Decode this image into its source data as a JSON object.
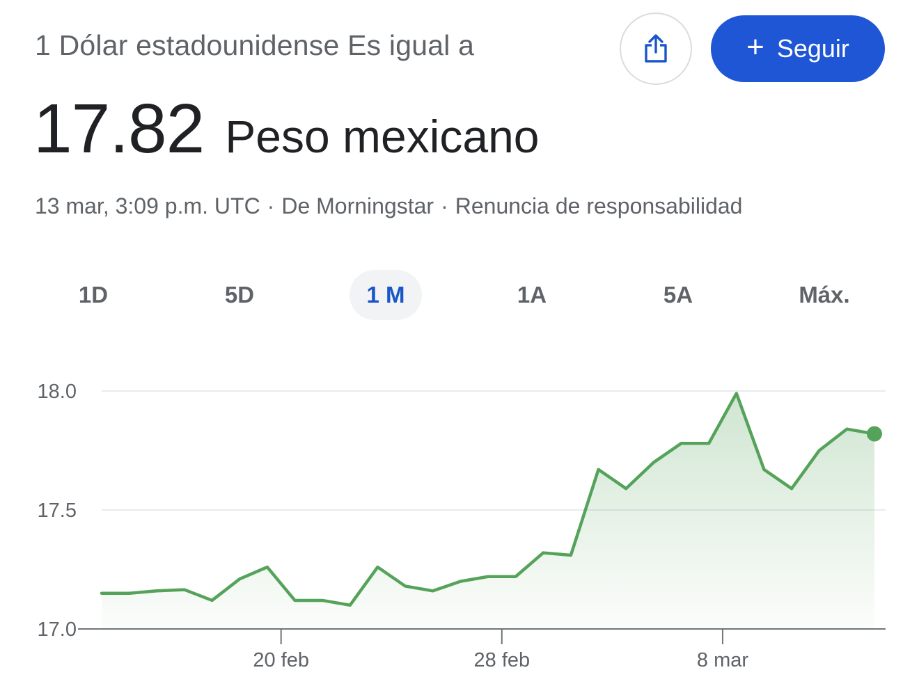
{
  "header": {
    "title": "1 Dólar estadounidense Es igual a",
    "share_icon": "share-icon",
    "follow_label": "Seguir",
    "follow_icon": "plus-icon"
  },
  "rate": {
    "value": "17.82",
    "currency": "Peso mexicano"
  },
  "meta": {
    "timestamp": "13 mar, 3:09 p.m. UTC",
    "separator": "·",
    "source": "De Morningstar",
    "disclaimer": "Renuncia de responsabilidad"
  },
  "ranges": {
    "selected": "1 M",
    "items": [
      "1D",
      "5D",
      "1 M",
      "1A",
      "5A",
      "Máx."
    ]
  },
  "colors": {
    "line": "#55a35a",
    "accent": "#1f56d6",
    "active_tab": "#1a56c9"
  },
  "chart_data": {
    "type": "area",
    "y_ticks": [
      "18.0",
      "17.5",
      "17.0"
    ],
    "y_tick_values": [
      18.0,
      17.5,
      17.0
    ],
    "x_ticks": [
      "20 feb",
      "28 feb",
      "8 mar"
    ],
    "ylim": [
      17.0,
      18.0
    ],
    "grid": true,
    "series": [
      {
        "values": [
          17.15,
          17.15,
          17.16,
          17.165,
          17.12,
          17.21,
          17.26,
          17.12,
          17.12,
          17.1,
          17.26,
          17.18,
          17.16,
          17.2,
          17.22,
          17.22,
          17.32,
          17.31,
          17.67,
          17.59,
          17.7,
          17.78,
          17.78,
          17.99,
          17.67,
          17.59,
          17.75,
          17.84,
          17.82
        ]
      }
    ],
    "x_tick_indices": [
      6.5,
      14.5,
      22.5
    ]
  }
}
